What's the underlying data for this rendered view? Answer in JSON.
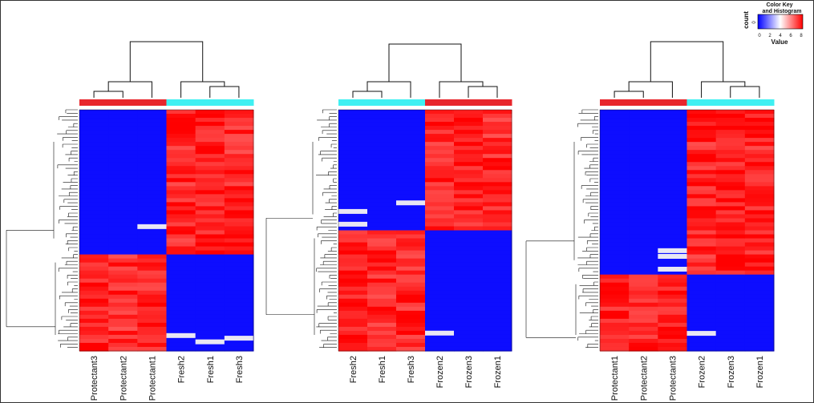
{
  "colors": {
    "low": "#0000ff",
    "mid": "#ffffff",
    "high": "#ff0000",
    "groupA": "#e8262c",
    "groupB": "#3ff0f2",
    "line": "#111111"
  },
  "color_key": {
    "title_line1": "Color Key",
    "title_line2": "and Histogram",
    "y_label": "count",
    "y_tick": "0",
    "x_label": "Value",
    "x_ticks": [
      "0",
      "2",
      "4",
      "6",
      "8"
    ]
  },
  "chart_data": [
    {
      "type": "heatmap",
      "columns": [
        "Protectant3",
        "Protectant2",
        "Protectant1",
        "Fresh2",
        "Fresh1",
        "Fresh3"
      ],
      "column_groups": [
        "groupA",
        "groupA",
        "groupA",
        "groupB",
        "groupB",
        "groupB"
      ],
      "top_block_row_fraction": 0.6,
      "value_range": [
        0,
        8
      ],
      "top_block_values": [
        0.2,
        0.2,
        0.2,
        7.2,
        7.4,
        7.1
      ],
      "bottom_block_values": [
        7.3,
        7.0,
        7.2,
        0.2,
        0.2,
        0.2
      ]
    },
    {
      "type": "heatmap",
      "columns": [
        "Fresh2",
        "Fresh1",
        "Fresh3",
        "Frozen2",
        "Frozen3",
        "Frozen1"
      ],
      "column_groups": [
        "groupB",
        "groupB",
        "groupB",
        "groupA",
        "groupA",
        "groupA"
      ],
      "top_block_row_fraction": 0.5,
      "value_range": [
        0,
        8
      ],
      "top_block_values": [
        0.2,
        0.2,
        0.2,
        7.2,
        7.3,
        7.1
      ],
      "bottom_block_values": [
        7.3,
        7.1,
        7.2,
        0.2,
        0.2,
        0.2
      ]
    },
    {
      "type": "heatmap",
      "columns": [
        "Protectant1",
        "Protectant2",
        "Protectant3",
        "Frozen2",
        "Frozen3",
        "Frozen1"
      ],
      "column_groups": [
        "groupA",
        "groupA",
        "groupA",
        "groupB",
        "groupB",
        "groupB"
      ],
      "top_block_row_fraction": 0.69,
      "value_range": [
        0,
        8
      ],
      "top_block_values": [
        0.2,
        0.2,
        0.2,
        7.2,
        7.4,
        7.2
      ],
      "bottom_block_values": [
        7.3,
        7.2,
        7.3,
        0.2,
        0.2,
        0.2
      ]
    }
  ]
}
